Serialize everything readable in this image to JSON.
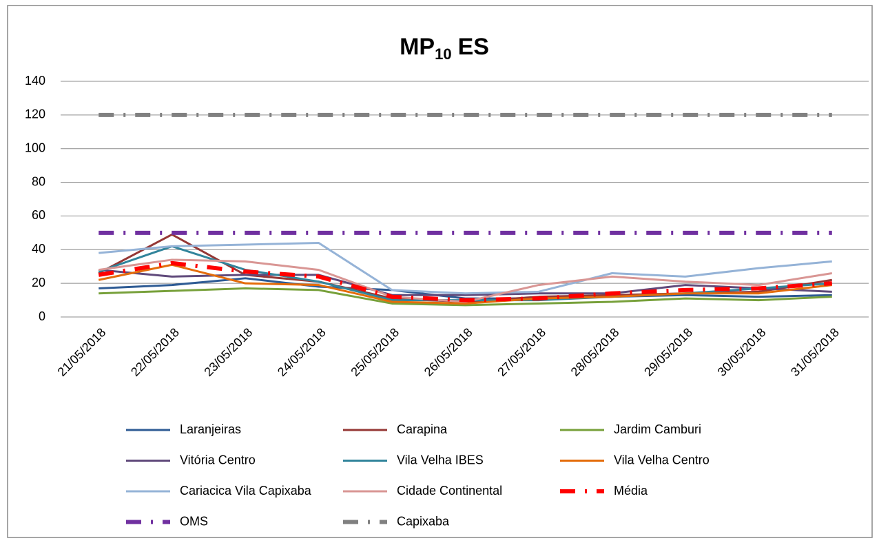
{
  "chart_data": {
    "type": "line",
    "title": {
      "text": "MP",
      "subscript": "10",
      "suffix": "ES"
    },
    "categories": [
      "21/05/2018",
      "22/05/2018",
      "23/05/2018",
      "24/05/2018",
      "25/05/2018",
      "26/05/2018",
      "27/05/2018",
      "28/05/2018",
      "29/05/2018",
      "30/05/2018",
      "31/05/2018"
    ],
    "series": [
      {
        "name": "Laranjeiras",
        "color": "#2e5b94",
        "values": [
          17,
          19,
          23,
          18,
          16,
          11,
          11,
          12,
          13,
          12,
          13
        ]
      },
      {
        "name": "Carapina",
        "color": "#953735",
        "values": [
          26,
          49,
          25,
          21,
          11,
          9,
          12,
          13,
          14,
          15,
          22
        ]
      },
      {
        "name": "Jardim Camburi",
        "color": "#77a03a",
        "values": [
          14,
          15.5,
          17,
          16,
          8,
          7,
          8,
          9,
          11,
          10,
          12
        ]
      },
      {
        "name": "Vitória Centro",
        "color": "#604a7b",
        "values": [
          28,
          24,
          25,
          25,
          13,
          13,
          14,
          14,
          19,
          17,
          15
        ]
      },
      {
        "name": "Vila Velha IBES",
        "color": "#31849b",
        "values": [
          27,
          42,
          28,
          21,
          10,
          10,
          10,
          12,
          14,
          17,
          20
        ]
      },
      {
        "name": "Vila Velha Centro",
        "color": "#e46c0a",
        "values": [
          22,
          31,
          20,
          19,
          9,
          8,
          11,
          12,
          14,
          14,
          19
        ]
      },
      {
        "name": "Cariacica Vila Capixaba",
        "color": "#95b3d7",
        "values": [
          38,
          42,
          43,
          44,
          16,
          14,
          15,
          26,
          24,
          29,
          33
        ]
      },
      {
        "name": "Cidade Continental",
        "color": "#d99694",
        "values": [
          28,
          34,
          33,
          28,
          12,
          9,
          19,
          24,
          21,
          19,
          26
        ]
      },
      {
        "name": "Média",
        "color": "#ff0000",
        "style": "dash-dot",
        "values": [
          25,
          32,
          27,
          24,
          12,
          10,
          11,
          14,
          16,
          17,
          20
        ]
      },
      {
        "name": "OMS",
        "color": "#7030a0",
        "style": "dash-dot",
        "values": [
          50,
          50,
          50,
          50,
          50,
          50,
          50,
          50,
          50,
          50,
          50
        ]
      },
      {
        "name": "Capixaba",
        "color": "#808080",
        "style": "dash-dot",
        "values": [
          120,
          120,
          120,
          120,
          120,
          120,
          120,
          120,
          120,
          120,
          120
        ]
      }
    ],
    "ylim": [
      0,
      140
    ],
    "yticks": [
      0,
      20,
      40,
      60,
      80,
      100,
      120,
      140
    ],
    "grid": true,
    "legend": "bottom"
  }
}
